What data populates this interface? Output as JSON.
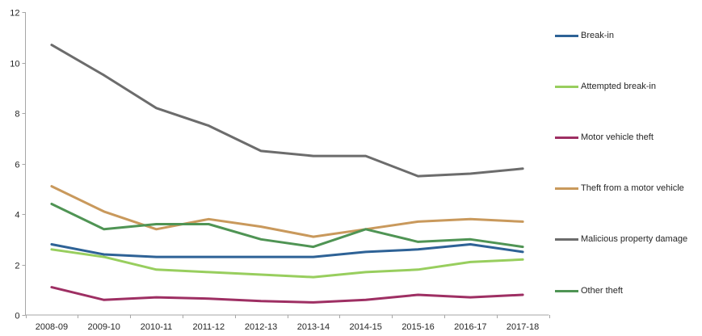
{
  "chart_data": {
    "type": "line",
    "title": "",
    "xlabel": "",
    "ylabel": "",
    "categories": [
      "2008-09",
      "2009-10",
      "2010-11",
      "2011-12",
      "2012-13",
      "2013-14",
      "2014-15",
      "2015-16",
      "2016-17",
      "2017-18"
    ],
    "series": [
      {
        "name": "Break-in",
        "color": "#2e6296",
        "values": [
          2.8,
          2.4,
          2.3,
          2.3,
          2.3,
          2.3,
          2.5,
          2.6,
          2.8,
          2.5
        ]
      },
      {
        "name": "Attempted break-in",
        "color": "#98ce5e",
        "values": [
          2.6,
          2.3,
          1.8,
          1.7,
          1.6,
          1.5,
          1.7,
          1.8,
          2.1,
          2.2
        ]
      },
      {
        "name": "Motor vehicle theft",
        "color": "#9e2f63",
        "values": [
          1.1,
          0.6,
          0.7,
          0.65,
          0.55,
          0.5,
          0.6,
          0.8,
          0.7,
          0.8
        ]
      },
      {
        "name": "Theft from a motor vehicle",
        "color": "#c9995c",
        "values": [
          5.1,
          4.1,
          3.4,
          3.8,
          3.5,
          3.1,
          3.4,
          3.7,
          3.8,
          3.7
        ]
      },
      {
        "name": "Malicious property damage",
        "color": "#6c6c6c",
        "values": [
          10.7,
          9.5,
          8.2,
          7.5,
          6.5,
          6.3,
          6.3,
          5.5,
          5.6,
          5.8
        ]
      },
      {
        "name": "Other theft",
        "color": "#4f9454",
        "values": [
          4.4,
          3.4,
          3.6,
          3.6,
          3.0,
          2.7,
          3.4,
          2.9,
          3.0,
          2.7
        ]
      }
    ],
    "ylim": [
      0,
      12
    ],
    "yticks": [
      0,
      2,
      4,
      6,
      8,
      10,
      12
    ],
    "grid": false,
    "legend_position": "right"
  },
  "colors": {
    "axis": "#a6a6a6",
    "tick_label": "#262626",
    "background": "#ffffff"
  }
}
